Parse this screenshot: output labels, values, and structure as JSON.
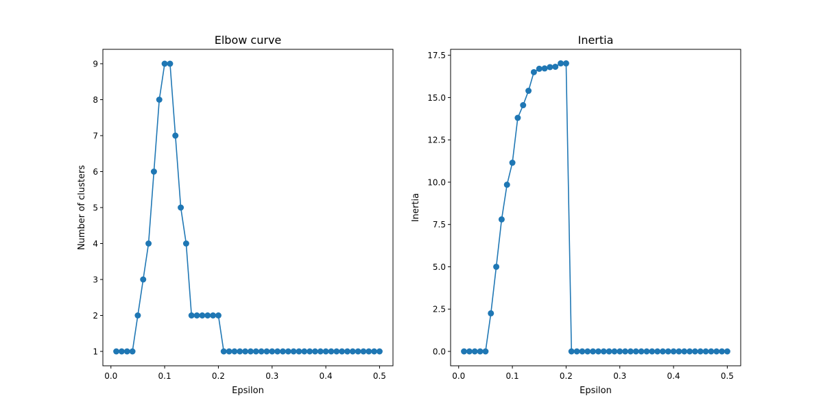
{
  "colors": {
    "series": "#1f77b4",
    "background": "#ffffff"
  },
  "chart_data": [
    {
      "type": "line",
      "marker": "circle",
      "title": "Elbow curve",
      "xlabel": "Epsilon",
      "ylabel": "Number of clusters",
      "xlim": [
        -0.015,
        0.525
      ],
      "ylim": [
        0.6,
        9.4
      ],
      "xticks": [
        0.0,
        0.1,
        0.2,
        0.3,
        0.4,
        0.5
      ],
      "xtick_labels": [
        "0.0",
        "0.1",
        "0.2",
        "0.3",
        "0.4",
        "0.5"
      ],
      "yticks": [
        1,
        2,
        3,
        4,
        5,
        6,
        7,
        8,
        9
      ],
      "ytick_labels": [
        "1",
        "2",
        "3",
        "4",
        "5",
        "6",
        "7",
        "8",
        "9"
      ],
      "grid": false,
      "x": [
        0.01,
        0.02,
        0.03,
        0.04,
        0.05,
        0.06,
        0.07,
        0.08,
        0.09,
        0.1,
        0.11,
        0.12,
        0.13,
        0.14,
        0.15,
        0.16,
        0.17,
        0.18,
        0.19,
        0.2,
        0.21,
        0.22,
        0.23,
        0.24,
        0.25,
        0.26,
        0.27,
        0.28,
        0.29,
        0.3,
        0.31,
        0.32,
        0.33,
        0.34,
        0.35,
        0.36,
        0.37,
        0.38,
        0.39,
        0.4,
        0.41,
        0.42,
        0.43,
        0.44,
        0.45,
        0.46,
        0.47,
        0.48,
        0.49,
        0.5
      ],
      "y": [
        1,
        1,
        1,
        1,
        2,
        3,
        4,
        6,
        8,
        9,
        9,
        7,
        5,
        4,
        2,
        2,
        2,
        2,
        2,
        2,
        1,
        1,
        1,
        1,
        1,
        1,
        1,
        1,
        1,
        1,
        1,
        1,
        1,
        1,
        1,
        1,
        1,
        1,
        1,
        1,
        1,
        1,
        1,
        1,
        1,
        1,
        1,
        1,
        1,
        1
      ]
    },
    {
      "type": "line",
      "marker": "circle",
      "title": "Inertia",
      "xlabel": "Epsilon",
      "ylabel": "Inertia",
      "xlim": [
        -0.015,
        0.525
      ],
      "ylim": [
        -0.85,
        17.85
      ],
      "xticks": [
        0.0,
        0.1,
        0.2,
        0.3,
        0.4,
        0.5
      ],
      "xtick_labels": [
        "0.0",
        "0.1",
        "0.2",
        "0.3",
        "0.4",
        "0.5"
      ],
      "yticks": [
        0.0,
        2.5,
        5.0,
        7.5,
        10.0,
        12.5,
        15.0,
        17.5
      ],
      "ytick_labels": [
        "0.0",
        "2.5",
        "5.0",
        "7.5",
        "10.0",
        "12.5",
        "15.0",
        "17.5"
      ],
      "grid": false,
      "x": [
        0.01,
        0.02,
        0.03,
        0.04,
        0.05,
        0.06,
        0.07,
        0.08,
        0.09,
        0.1,
        0.11,
        0.12,
        0.13,
        0.14,
        0.15,
        0.16,
        0.17,
        0.18,
        0.19,
        0.2,
        0.21,
        0.22,
        0.23,
        0.24,
        0.25,
        0.26,
        0.27,
        0.28,
        0.29,
        0.3,
        0.31,
        0.32,
        0.33,
        0.34,
        0.35,
        0.36,
        0.37,
        0.38,
        0.39,
        0.4,
        0.41,
        0.42,
        0.43,
        0.44,
        0.45,
        0.46,
        0.47,
        0.48,
        0.49,
        0.5
      ],
      "y": [
        0,
        0,
        0,
        0,
        0,
        2.25,
        5.0,
        7.8,
        9.85,
        11.15,
        13.8,
        14.55,
        15.4,
        16.5,
        16.7,
        16.72,
        16.8,
        16.82,
        17.02,
        17.02,
        0,
        0,
        0,
        0,
        0,
        0,
        0,
        0,
        0,
        0,
        0,
        0,
        0,
        0,
        0,
        0,
        0,
        0,
        0,
        0,
        0,
        0,
        0,
        0,
        0,
        0,
        0,
        0,
        0,
        0
      ]
    }
  ]
}
